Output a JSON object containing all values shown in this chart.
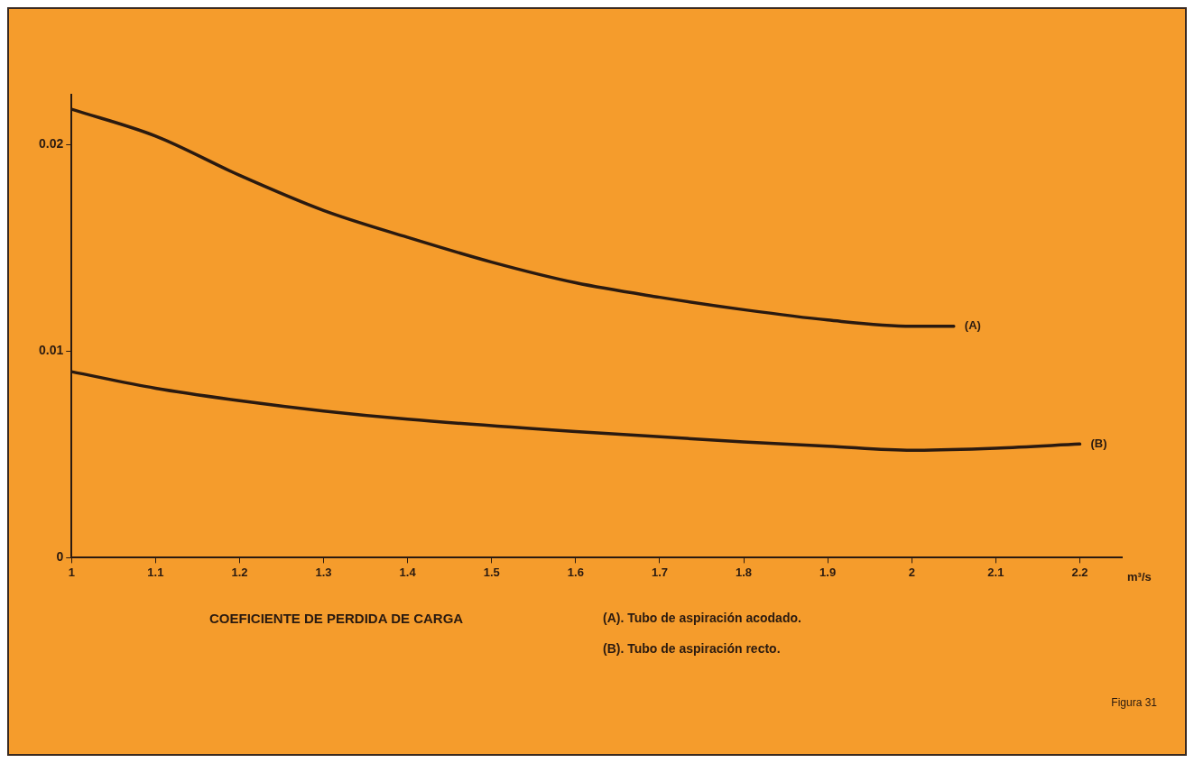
{
  "chart_data": {
    "type": "line",
    "title": "COEFICIENTE DE PERDIDA DE CARGA",
    "xlabel": "m³/s",
    "annotations": [
      "(A). Tubo de aspiración acodado.",
      "(B). Tubo de aspiración recto.",
      "Figura 31"
    ],
    "xlim": [
      1,
      2.25
    ],
    "xticks": [
      1,
      1.1,
      1.2,
      1.3,
      1.4,
      1.5,
      1.6,
      1.7,
      1.8,
      1.9,
      2,
      2.1,
      2.2
    ],
    "ylim": [
      0,
      0.0224
    ],
    "yticks": [
      0,
      0.01,
      0.02
    ],
    "legend": false,
    "marker": "none",
    "line_style": "solid",
    "series": [
      {
        "name": "(A)",
        "color": "#2a1a10",
        "x": [
          1,
          1.1,
          1.2,
          1.3,
          1.4,
          1.5,
          1.6,
          1.7,
          1.8,
          1.9,
          2,
          2.05
        ],
        "values": [
          0.0217,
          0.0204,
          0.0185,
          0.0168,
          0.0155,
          0.0143,
          0.0133,
          0.0126,
          0.012,
          0.0115,
          0.0112,
          0.0112
        ]
      },
      {
        "name": "(B)",
        "color": "#2a1a10",
        "x": [
          1,
          1.1,
          1.2,
          1.3,
          1.4,
          1.6,
          1.8,
          1.9,
          2,
          2.1,
          2.2
        ],
        "values": [
          0.009,
          0.0082,
          0.0076,
          0.0071,
          0.0067,
          0.0061,
          0.0056,
          0.0054,
          0.0052,
          0.0053,
          0.0055
        ]
      }
    ]
  }
}
